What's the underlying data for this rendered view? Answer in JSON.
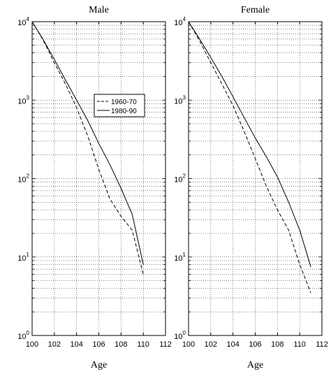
{
  "chart_data": [
    {
      "type": "line",
      "title": "Male",
      "xlabel": "Age",
      "ylabel": "",
      "xlim": [
        100,
        112
      ],
      "ylim": [
        1,
        10000
      ],
      "yscale": "log",
      "xticks": [
        100,
        102,
        104,
        106,
        108,
        110,
        112
      ],
      "yticks": [
        {
          "base": "10",
          "exp": "0",
          "value": 1
        },
        {
          "base": "10",
          "exp": "1",
          "value": 10
        },
        {
          "base": "10",
          "exp": "2",
          "value": 100
        },
        {
          "base": "10",
          "exp": "3",
          "value": 1000
        },
        {
          "base": "10",
          "exp": "4",
          "value": 10000
        }
      ],
      "grid": true,
      "legend": {
        "placement": "top-right",
        "entries": [
          {
            "label": "1960-70",
            "style": "dashed"
          },
          {
            "label": "1980-90",
            "style": "solid"
          }
        ]
      },
      "series": [
        {
          "name": "1960-70",
          "style": "dashed",
          "x": [
            100,
            101,
            102,
            103,
            104,
            105,
            106,
            107,
            108,
            109,
            110
          ],
          "y": [
            10000,
            5800,
            3000,
            1600,
            800,
            350,
            130,
            55,
            33,
            22,
            6
          ]
        },
        {
          "name": "1980-90",
          "style": "solid",
          "x": [
            100,
            101,
            102,
            103,
            104,
            105,
            106,
            107,
            108,
            109,
            110
          ],
          "y": [
            10000,
            5900,
            3300,
            1800,
            1000,
            550,
            280,
            150,
            75,
            35,
            8
          ]
        }
      ]
    },
    {
      "type": "line",
      "title": "Female",
      "xlabel": "Age",
      "ylabel": "",
      "xlim": [
        100,
        112
      ],
      "ylim": [
        1,
        10000
      ],
      "yscale": "log",
      "xticks": [
        100,
        102,
        104,
        106,
        108,
        110,
        112
      ],
      "yticks": [
        {
          "base": "10",
          "exp": "0",
          "value": 1
        },
        {
          "base": "10",
          "exp": "1",
          "value": 10
        },
        {
          "base": "10",
          "exp": "2",
          "value": 100
        },
        {
          "base": "10",
          "exp": "3",
          "value": 1000
        },
        {
          "base": "10",
          "exp": "4",
          "value": 10000
        }
      ],
      "grid": true,
      "series": [
        {
          "name": "1960-70",
          "style": "dashed",
          "x": [
            100,
            101,
            102,
            103,
            104,
            105,
            106,
            107,
            108,
            109,
            110,
            111
          ],
          "y": [
            10000,
            5700,
            3000,
            1600,
            850,
            400,
            180,
            80,
            40,
            22,
            8,
            3.5
          ]
        },
        {
          "name": "1980-90",
          "style": "solid",
          "x": [
            100,
            101,
            102,
            103,
            104,
            105,
            106,
            107,
            108,
            109,
            110,
            111
          ],
          "y": [
            10000,
            6000,
            3500,
            2000,
            1100,
            600,
            330,
            190,
            105,
            50,
            22,
            7.5
          ]
        }
      ]
    }
  ]
}
